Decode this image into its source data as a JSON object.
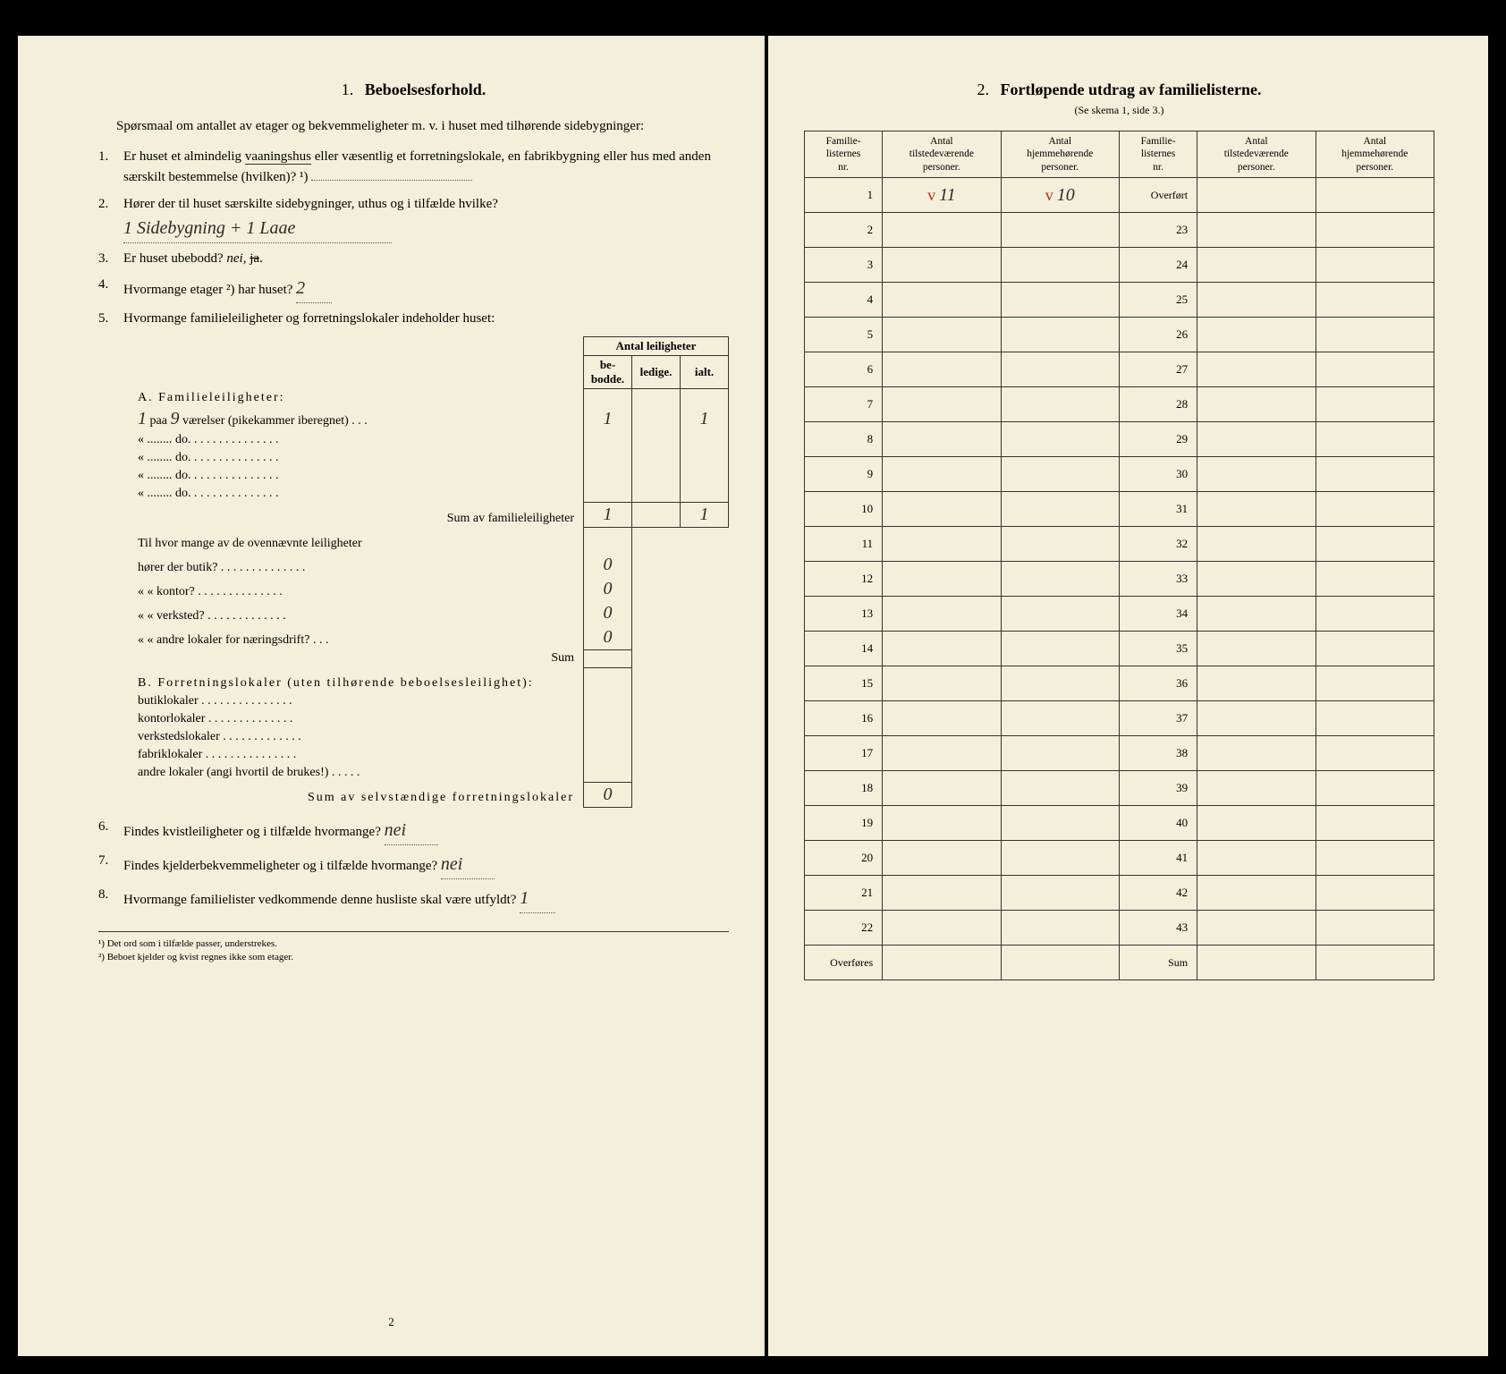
{
  "colors": {
    "paper": "#f4efda",
    "ink": "#222222",
    "handwriting": "#2a2a2a",
    "redcheck": "#b03020",
    "border": "#333333",
    "background": "#000000"
  },
  "left": {
    "section_num": "1.",
    "section_title": "Beboelsesforhold.",
    "intro": "Spørsmaal om antallet av etager og bekvemmeligheter m. v. i huset med tilhørende sidebygninger:",
    "questions": {
      "q1": {
        "num": "1.",
        "text_a": "Er huset et almindelig ",
        "underlined": "vaaningshus",
        "text_b": " eller væsentlig et forretningslokale, en fabrikbygning eller hus med anden særskilt bestemmelse (hvilken)? ¹)"
      },
      "q2": {
        "num": "2.",
        "text": "Hører der til huset særskilte sidebygninger, uthus og i tilfælde hvilke?",
        "answer": "1 Sidebygning + 1 Laae"
      },
      "q3": {
        "num": "3.",
        "text": "Er huset ubebodd?  nei,  ja.",
        "strike": "ja"
      },
      "q4": {
        "num": "4.",
        "text": "Hvormange etager ²) har huset?",
        "answer": "2"
      },
      "q5": {
        "num": "5.",
        "text": "Hvormange familieleiligheter og forretningslokaler indeholder huset:"
      },
      "q6": {
        "num": "6.",
        "text": "Findes kvistleiligheter og i tilfælde hvormange?",
        "answer": "nei"
      },
      "q7": {
        "num": "7.",
        "text": "Findes kjelderbekvemmeligheter og i tilfælde hvormange?",
        "answer": "nei"
      },
      "q8": {
        "num": "8.",
        "text": "Hvormange familielister vedkommende denne husliste skal være utfyldt?",
        "answer": "1"
      }
    },
    "inner_table": {
      "header_top": "Antal leiligheter",
      "headers": [
        "be-\nbodde.",
        "ledige.",
        "ialt."
      ]
    },
    "sectionA": {
      "title": "A. Familieleiligheter:",
      "prefix_hand": "1",
      "rows": [
        {
          "text": "paa 9 værelser (pikekammer iberegnet) . . .",
          "paa_hand": "9",
          "bebodde": "1",
          "ledige": "",
          "ialt": "1"
        },
        {
          "text": "«   ........   do.   . . . . . . . . . . . . . .",
          "bebodde": "",
          "ledige": "",
          "ialt": ""
        },
        {
          "text": "«   ........   do.   . . . . . . . . . . . . . .",
          "bebodde": "",
          "ledige": "",
          "ialt": ""
        },
        {
          "text": "«   ........   do.   . . . . . . . . . . . . . .",
          "bebodde": "",
          "ledige": "",
          "ialt": ""
        },
        {
          "text": "«   ........   do.   . . . . . . . . . . . . . .",
          "bebodde": "",
          "ledige": "",
          "ialt": ""
        }
      ],
      "sum_label": "Sum av familieleiligheter",
      "sum": {
        "bebodde": "1",
        "ledige": "",
        "ialt": "1"
      }
    },
    "sectionA2": {
      "intro": "Til hvor mange av de ovennævnte leiligheter",
      "rows": [
        {
          "text": "hører der butik? . . . . . . . . . . . . . .",
          "val": "0"
        },
        {
          "text": "«     «   kontor? . . . . . . . . . . . . . .",
          "val": "0"
        },
        {
          "text": "«     «   verksted? . . . . . . . . . . . . .",
          "val": "0"
        },
        {
          "text": "«     «   andre lokaler for næringsdrift?  . . .",
          "val": "0"
        }
      ],
      "sum_label": "Sum"
    },
    "sectionB": {
      "title": "B. Forretningslokaler (uten tilhørende beboelsesleilighet):",
      "rows": [
        {
          "text": "butiklokaler . . . . . . . . . . . . . . ."
        },
        {
          "text": "kontorlokaler . . . . . . . . . . . . . ."
        },
        {
          "text": "verkstedslokaler . . . . . . . . . . . . ."
        },
        {
          "text": "fabriklokaler . . . . . . . . . . . . . . ."
        },
        {
          "text": "andre lokaler (angi hvortil de brukes!) . . . . ."
        }
      ],
      "sum_label": "Sum av selvstændige forretningslokaler",
      "sum_val": "0"
    },
    "footnote1": "¹) Det ord som i tilfælde passer, understrekes.",
    "footnote2": "²) Beboet kjelder og kvist regnes ikke som etager.",
    "page_num": "2"
  },
  "right": {
    "section_num": "2.",
    "section_title": "Fortløpende utdrag av familielisterne.",
    "subtitle": "(Se skema 1, side 3.)",
    "headers": {
      "col1": "Familie-\nlisternes\nnr.",
      "col2": "Antal\ntilstedeværende\npersoner.",
      "col3": "Antal\nhjemmehørende\npersoner.",
      "col4": "Familie-\nlisternes\nnr.",
      "col5": "Antal\ntilstedeværende\npersoner.",
      "col6": "Antal\nhjemmehørende\npersoner."
    },
    "overfort": "Overført",
    "overfores": "Overføres",
    "sum": "Sum",
    "row1_data": {
      "tilstede_check": "v",
      "tilstede": "11",
      "hjemme_check": "v",
      "hjemme": "10"
    },
    "left_nums": [
      "1",
      "2",
      "3",
      "4",
      "5",
      "6",
      "7",
      "8",
      "9",
      "10",
      "11",
      "12",
      "13",
      "14",
      "15",
      "16",
      "17",
      "18",
      "19",
      "20",
      "21",
      "22"
    ],
    "right_nums": [
      "23",
      "24",
      "25",
      "26",
      "27",
      "28",
      "29",
      "30",
      "31",
      "32",
      "33",
      "34",
      "35",
      "36",
      "37",
      "38",
      "39",
      "40",
      "41",
      "42",
      "43"
    ]
  }
}
